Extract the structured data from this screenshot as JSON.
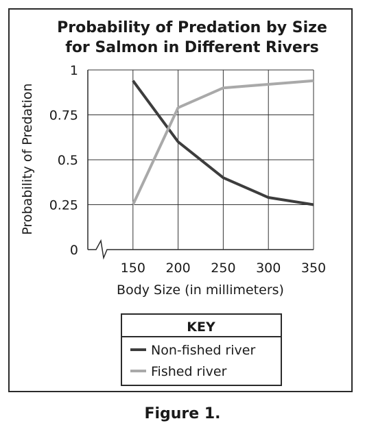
{
  "chart_data": {
    "type": "line",
    "title_lines": [
      "Probability of Predation by Size",
      "for Salmon in Different Rivers"
    ],
    "xlabel": "Body Size (in millimeters)",
    "ylabel": "Probability of Predation",
    "x": [
      150,
      200,
      250,
      300,
      350
    ],
    "x_tick_labels": [
      "150",
      "200",
      "250",
      "300",
      "350"
    ],
    "y_tick_labels": [
      "0",
      "0.25",
      "0.5",
      "0.75",
      "1"
    ],
    "y_ticks": [
      0,
      0.25,
      0.5,
      0.75,
      1
    ],
    "xlim": [
      100,
      350
    ],
    "ylim": [
      0,
      1
    ],
    "grid": true,
    "axis_break": true,
    "series": [
      {
        "name": "Non-fished river",
        "color": "#3d3d3d",
        "values": [
          0.94,
          0.6,
          0.4,
          0.29,
          0.25
        ]
      },
      {
        "name": "Fished river",
        "color": "#a9a9a9",
        "values": [
          0.25,
          0.79,
          0.9,
          0.92,
          0.94
        ]
      }
    ],
    "legend": {
      "title": "KEY",
      "placement": "bottom-center"
    }
  },
  "figure_caption": "Figure 1."
}
